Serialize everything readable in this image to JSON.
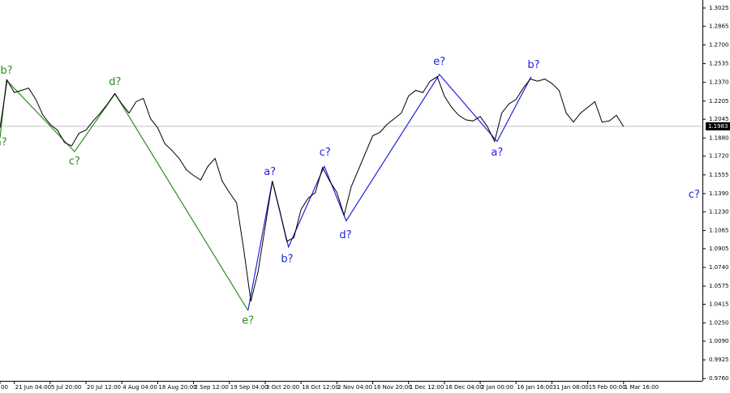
{
  "chart_data": {
    "type": "line",
    "x": [
      0,
      2,
      4,
      6,
      8,
      10,
      12,
      14,
      16,
      18,
      20,
      22,
      24,
      26,
      28,
      30,
      32,
      34,
      36,
      38,
      40,
      42,
      44,
      46,
      48,
      50,
      52,
      54,
      56,
      58,
      60,
      62,
      64,
      66,
      68,
      70,
      72,
      74,
      76,
      78,
      80,
      82,
      84,
      86,
      88,
      90,
      92,
      94,
      96,
      98,
      100,
      102,
      104,
      106,
      108,
      110,
      112,
      114,
      116,
      118,
      120,
      122,
      124,
      126,
      128,
      130,
      132,
      134,
      136,
      138,
      140,
      142,
      144,
      146,
      148,
      150,
      152,
      154,
      156,
      158,
      160,
      162,
      164,
      166,
      168,
      170,
      172,
      174
    ],
    "series": [
      {
        "color": "#000000",
        "values": [
          1.197,
          1.239,
          1.228,
          1.23,
          1.232,
          1.222,
          1.208,
          1.2,
          1.195,
          1.184,
          1.181,
          1.192,
          1.195,
          1.203,
          1.21,
          1.218,
          1.227,
          1.218,
          1.21,
          1.22,
          1.223,
          1.205,
          1.197,
          1.183,
          1.177,
          1.17,
          1.16,
          1.155,
          1.151,
          1.163,
          1.17,
          1.15,
          1.14,
          1.131,
          1.09,
          1.044,
          1.07,
          1.11,
          1.15,
          1.125,
          1.097,
          1.1,
          1.125,
          1.135,
          1.14,
          1.162,
          1.15,
          1.14,
          1.12,
          1.145,
          1.16,
          1.175,
          1.19,
          1.193,
          1.2,
          1.205,
          1.21,
          1.225,
          1.23,
          1.228,
          1.238,
          1.242,
          1.225,
          1.215,
          1.208,
          1.204,
          1.203,
          1.207,
          1.198,
          1.185,
          1.21,
          1.218,
          1.222,
          1.232,
          1.24,
          1.238,
          1.24,
          1.236,
          1.23,
          1.21,
          1.202,
          1.21,
          1.215,
          1.22,
          1.202,
          1.203,
          1.208,
          1.198
        ]
      }
    ],
    "wave_lines": [
      {
        "color": "#2e8b22",
        "x": [
          0,
          1.8,
          20.8,
          32.1,
          69.2
        ],
        "values": [
          1.188,
          1.239,
          1.176,
          1.227,
          1.036
        ]
      },
      {
        "color": "#2222dd",
        "x": [
          69.2,
          76,
          80.5,
          90.5,
          96.6,
          122.6,
          138.7,
          148.2
        ],
        "values": [
          1.036,
          1.15,
          1.092,
          1.163,
          1.115,
          1.244,
          1.185,
          1.242
        ]
      }
    ],
    "annotations": [
      {
        "text": "a?",
        "x": 0.3,
        "y": 1.184,
        "color": "#2e8b22"
      },
      {
        "text": "b?",
        "x": 1.8,
        "y": 1.247,
        "color": "#2e8b22"
      },
      {
        "text": "c?",
        "x": 20.8,
        "y": 1.167,
        "color": "#2e8b22"
      },
      {
        "text": "d?",
        "x": 32.1,
        "y": 1.237,
        "color": "#2e8b22"
      },
      {
        "text": "e?",
        "x": 69.2,
        "y": 1.027,
        "color": "#2e8b22"
      },
      {
        "text": "a?",
        "x": 75.3,
        "y": 1.158,
        "color": "#2222dd"
      },
      {
        "text": "b?",
        "x": 80.1,
        "y": 1.081,
        "color": "#2222dd"
      },
      {
        "text": "c?",
        "x": 90.7,
        "y": 1.175,
        "color": "#2222dd"
      },
      {
        "text": "d?",
        "x": 96.4,
        "y": 1.102,
        "color": "#2222dd"
      },
      {
        "text": "e?",
        "x": 122.6,
        "y": 1.255,
        "color": "#2222dd"
      },
      {
        "text": "a?",
        "x": 138.7,
        "y": 1.175,
        "color": "#2222dd"
      },
      {
        "text": "b?",
        "x": 148.9,
        "y": 1.252,
        "color": "#2222dd"
      },
      {
        "text": "c?",
        "x": 193.7,
        "y": 1.138,
        "color": "#2222dd"
      }
    ],
    "last_price": 1.1983,
    "xlim": [
      0,
      196
    ],
    "ylim": [
      0.974,
      1.3096
    ],
    "xticks": [
      {
        "value": 0,
        "label": "00"
      },
      {
        "value": 4,
        "label": "21 Jun 04:00"
      },
      {
        "value": 14,
        "label": "5 Jul 20:00"
      },
      {
        "value": 24,
        "label": "20 Jul 12:00"
      },
      {
        "value": 34,
        "label": "4 Aug 04:00"
      },
      {
        "value": 44,
        "label": "18 Aug 20:00"
      },
      {
        "value": 54,
        "label": "2 Sep 12:00"
      },
      {
        "value": 64,
        "label": "19 Sep 04:00"
      },
      {
        "value": 74,
        "label": "3 Oct 20:00"
      },
      {
        "value": 84,
        "label": "18 Oct 12:00"
      },
      {
        "value": 94,
        "label": "2 Nov 04:00"
      },
      {
        "value": 104,
        "label": "16 Nov 20:00"
      },
      {
        "value": 114,
        "label": "1 Dec 12:00"
      },
      {
        "value": 124,
        "label": "16 Dec 04:00"
      },
      {
        "value": 134,
        "label": "2 Jan 00:00"
      },
      {
        "value": 144,
        "label": "16 Jan 16:00"
      },
      {
        "value": 154,
        "label": "31 Jan 08:00"
      },
      {
        "value": 164,
        "label": "15 Feb 00:00"
      },
      {
        "value": 174,
        "label": "1 Mar 16:00"
      }
    ],
    "yticks": [
      1.3025,
      1.2865,
      {
        "value": 1.27,
        "label": "1.2700"
      },
      1.2535,
      {
        "value": 1.237,
        "label": "1.2370"
      },
      1.2205,
      1.2045,
      {
        "value": 1.188,
        "label": "1.1880"
      },
      {
        "value": 1.172,
        "label": "1.1720"
      },
      1.1555,
      {
        "value": 1.139,
        "label": "1.1390"
      },
      {
        "value": 1.123,
        "label": "1.1230"
      },
      1.1065,
      1.0905,
      {
        "value": 1.074,
        "label": "1.0740"
      },
      1.0575,
      1.0415,
      {
        "value": 1.025,
        "label": "1.0250"
      },
      {
        "value": 1.009,
        "label": "1.0090"
      },
      0.9925,
      {
        "value": 0.976,
        "label": "0.9760"
      }
    ]
  }
}
